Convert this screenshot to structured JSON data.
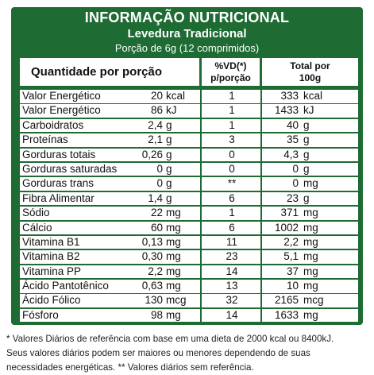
{
  "title": "INFORMAÇÃO NUTRICIONAL",
  "subtitle": "Levedura Tradicional",
  "serving": "Porção de 6g (12 comprimidos)",
  "columns": {
    "quantity": "Quantidade por porção",
    "vd_line1": "%VD(*)",
    "vd_line2": "p/porção",
    "total_line1": "Total por",
    "total_line2": "100g"
  },
  "rows": [
    {
      "name": "Valor Energético",
      "qty": "20",
      "qty_unit": "kcal",
      "vd": "1",
      "total": "333",
      "total_unit": "kcal"
    },
    {
      "name": "Valor Energético",
      "qty": "86",
      "qty_unit": "kJ",
      "vd": "1",
      "total": "1433",
      "total_unit": "kJ"
    },
    {
      "name": "Carboidratos",
      "qty": "2,4",
      "qty_unit": "g",
      "vd": "1",
      "total": "40",
      "total_unit": "g"
    },
    {
      "name": "Proteínas",
      "qty": "2,1",
      "qty_unit": "g",
      "vd": "3",
      "total": "35",
      "total_unit": "g"
    },
    {
      "name": "Gorduras totais",
      "qty": "0,26",
      "qty_unit": "g",
      "vd": "0",
      "total": "4,3",
      "total_unit": "g"
    },
    {
      "name": "Gorduras saturadas",
      "qty": "0",
      "qty_unit": "g",
      "vd": "0",
      "total": "0",
      "total_unit": "g"
    },
    {
      "name": "Gorduras trans",
      "qty": "0",
      "qty_unit": "g",
      "vd": "**",
      "total": "0",
      "total_unit": "mg"
    },
    {
      "name": "Fibra Alimentar",
      "qty": "1,4",
      "qty_unit": "g",
      "vd": "6",
      "total": "23",
      "total_unit": "g"
    },
    {
      "name": "Sódio",
      "qty": "22",
      "qty_unit": "mg",
      "vd": "1",
      "total": "371",
      "total_unit": "mg"
    },
    {
      "name": "Cálcio",
      "qty": "60",
      "qty_unit": "mg",
      "vd": "6",
      "total": "1002",
      "total_unit": "mg"
    },
    {
      "name": "Vitamina B1",
      "qty": "0,13",
      "qty_unit": "mg",
      "vd": "11",
      "total": "2,2",
      "total_unit": "mg"
    },
    {
      "name": "Vitamina B2",
      "qty": "0,30",
      "qty_unit": "mg",
      "vd": "23",
      "total": "5,1",
      "total_unit": "mg"
    },
    {
      "name": "Vitamina PP",
      "qty": "2,2",
      "qty_unit": "mg",
      "vd": "14",
      "total": "37",
      "total_unit": "mg"
    },
    {
      "name": "Ácido Pantotênico",
      "qty": "0,63",
      "qty_unit": "mg",
      "vd": "13",
      "total": "10",
      "total_unit": "mg"
    },
    {
      "name": "Ácido Fólico",
      "qty": "130",
      "qty_unit": "mcg",
      "vd": "32",
      "total": "2165",
      "total_unit": "mcg"
    },
    {
      "name": "Fósforo",
      "qty": "98",
      "qty_unit": "mg",
      "vd": "14",
      "total": "1633",
      "total_unit": "mg"
    }
  ],
  "footnote": {
    "line1": "* Valores Diários de referência com base em uma dieta de 2000 kcal ou 8400kJ.",
    "line2": "Seus valores diários podem ser maiores ou menores dependendo de suas",
    "line3": "necessidades energéticas. ** Valores diários sem referência."
  }
}
